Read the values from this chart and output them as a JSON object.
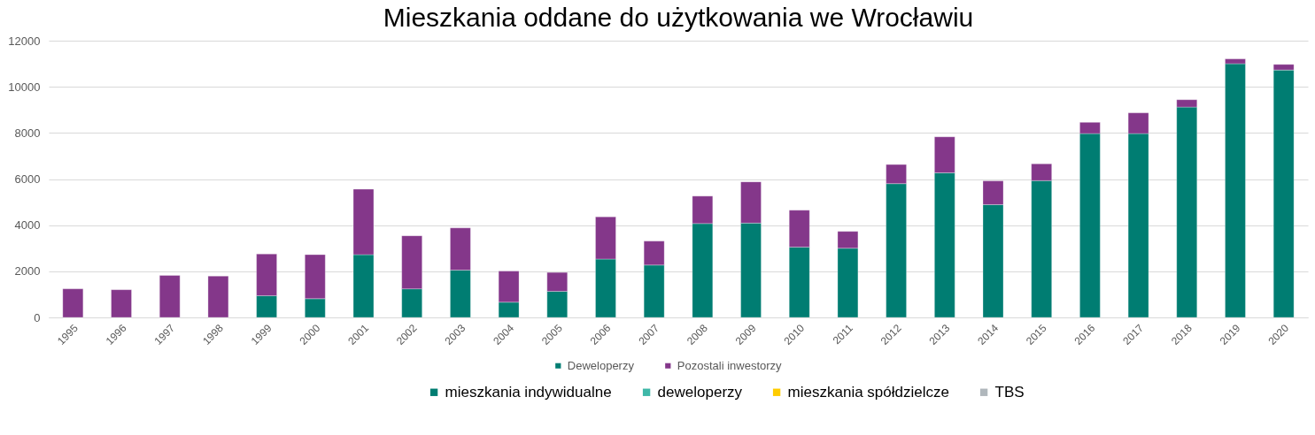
{
  "chart_data": {
    "type": "bar",
    "title": "Mieszkania oddane do użytkowania we Wrocławiu",
    "categories": [
      "1995",
      "1996",
      "1997",
      "1998",
      "1999",
      "2000",
      "2001",
      "2002",
      "2003",
      "2004",
      "2005",
      "2006",
      "2007",
      "2008",
      "2009",
      "2010",
      "2011",
      "2012",
      "2013",
      "2014",
      "2015",
      "2016",
      "2017",
      "2018",
      "2019",
      "2020"
    ],
    "stacked": true,
    "series": [
      {
        "name": "Deweloperzy",
        "color": "#007d72",
        "values": [
          0,
          0,
          0,
          0,
          940,
          810,
          2720,
          1240,
          2050,
          660,
          1130,
          2530,
          2270,
          4070,
          4090,
          3050,
          3000,
          5800,
          6270,
          4890,
          5930,
          7970,
          7970,
          9120,
          11000,
          10730
        ]
      },
      {
        "name": "Pozostali inwestorzy",
        "color": "#84378a",
        "values": [
          1240,
          1200,
          1820,
          1790,
          1810,
          1910,
          2840,
          2300,
          1830,
          1350,
          820,
          1830,
          1040,
          1190,
          1790,
          1600,
          730,
          830,
          1560,
          1030,
          730,
          490,
          900,
          320,
          210,
          240
        ]
      },
      {
        "name": "mieszkania indywidualne",
        "color": "#007d72",
        "values": [
          null,
          null,
          null,
          null,
          null,
          null,
          null,
          null,
          null,
          null,
          null,
          null,
          null,
          null,
          null,
          null,
          null,
          null,
          null,
          null,
          null,
          null,
          null,
          null,
          null,
          null
        ]
      },
      {
        "name": "deweloperzy",
        "color": "#3fb8a8",
        "values": [
          null,
          null,
          null,
          null,
          null,
          null,
          null,
          null,
          null,
          null,
          null,
          null,
          null,
          null,
          null,
          null,
          null,
          null,
          null,
          null,
          null,
          null,
          null,
          null,
          null,
          null
        ]
      },
      {
        "name": "mieszkania spółdzielcze",
        "color": "#ffcc00",
        "values": [
          null,
          null,
          null,
          null,
          null,
          null,
          null,
          null,
          null,
          null,
          null,
          null,
          null,
          null,
          null,
          null,
          null,
          null,
          null,
          null,
          null,
          null,
          null,
          null,
          null,
          null
        ]
      },
      {
        "name": "TBS",
        "color": "#b0b7bc",
        "values": [
          null,
          null,
          null,
          null,
          null,
          null,
          null,
          null,
          null,
          null,
          null,
          null,
          null,
          null,
          null,
          null,
          null,
          null,
          null,
          null,
          null,
          null,
          null,
          null,
          null,
          null
        ]
      }
    ],
    "ylim": [
      0,
      12000
    ],
    "yticks": [
      0,
      2000,
      4000,
      6000,
      8000,
      10000,
      12000
    ],
    "grid": "y",
    "legend": "bottom"
  }
}
